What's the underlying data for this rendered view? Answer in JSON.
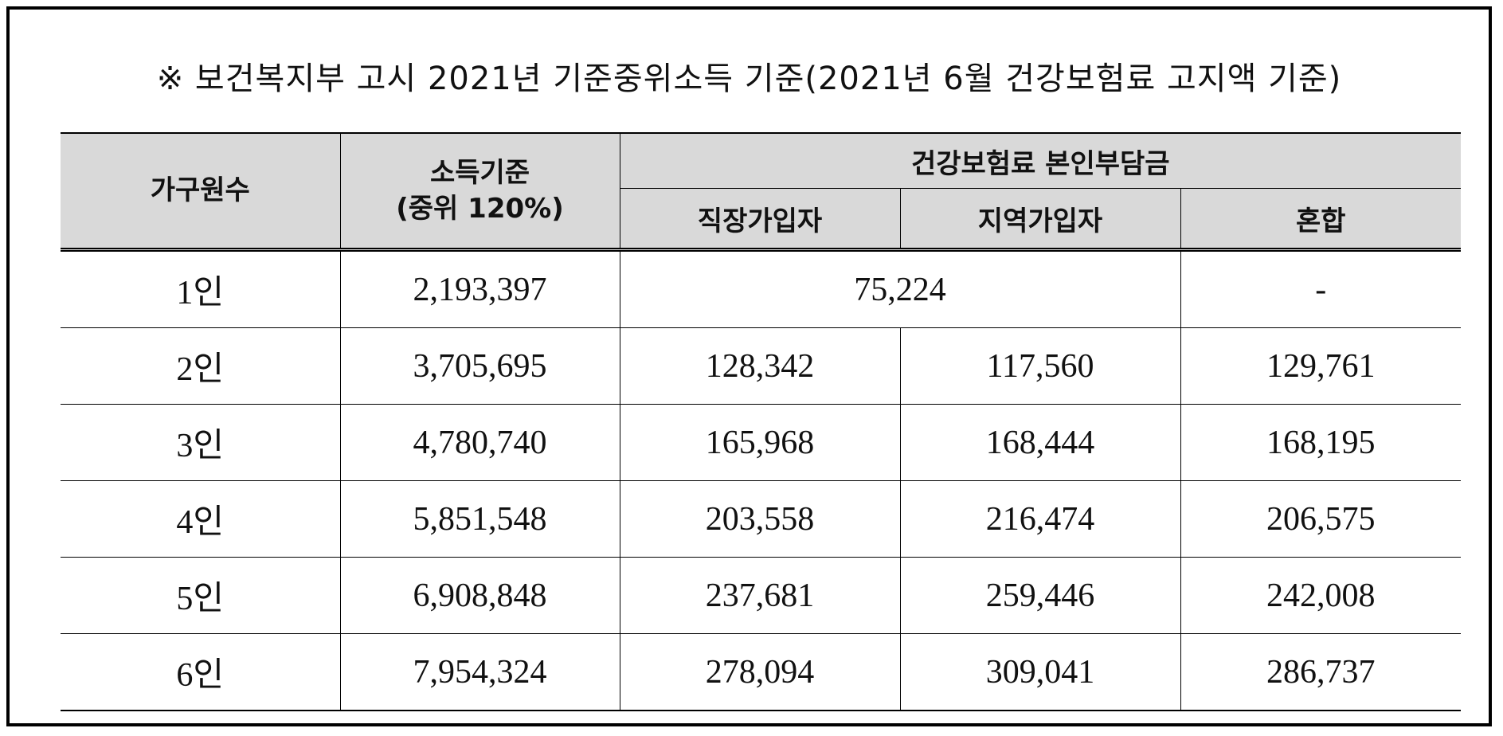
{
  "title": "※ 보건복지부 고시 2021년 기준중위소득 기준(2021년 6월 건강보험료 고지액 기준)",
  "header": {
    "household": "가구원수",
    "income_line1": "소득기준",
    "income_line2": "(중위 120%)",
    "premium_group": "건강보험료 본인부담금",
    "employee": "직장가입자",
    "regional": "지역가입자",
    "mixed": "혼합"
  },
  "rows": [
    {
      "household": "1인",
      "income": "2,193,397",
      "employee_regional_merged": "75,224",
      "mixed": "-"
    },
    {
      "household": "2인",
      "income": "3,705,695",
      "employee": "128,342",
      "regional": "117,560",
      "mixed": "129,761"
    },
    {
      "household": "3인",
      "income": "4,780,740",
      "employee": "165,968",
      "regional": "168,444",
      "mixed": "168,195"
    },
    {
      "household": "4인",
      "income": "5,851,548",
      "employee": "203,558",
      "regional": "216,474",
      "mixed": "206,575"
    },
    {
      "household": "5인",
      "income": "6,908,848",
      "employee": "237,681",
      "regional": "259,446",
      "mixed": "242,008"
    },
    {
      "household": "6인",
      "income": "7,954,324",
      "employee": "278,094",
      "regional": "309,041",
      "mixed": "286,737"
    }
  ],
  "colors": {
    "header_bg": "#d9d9d9",
    "border": "#000000",
    "text": "#111111"
  }
}
